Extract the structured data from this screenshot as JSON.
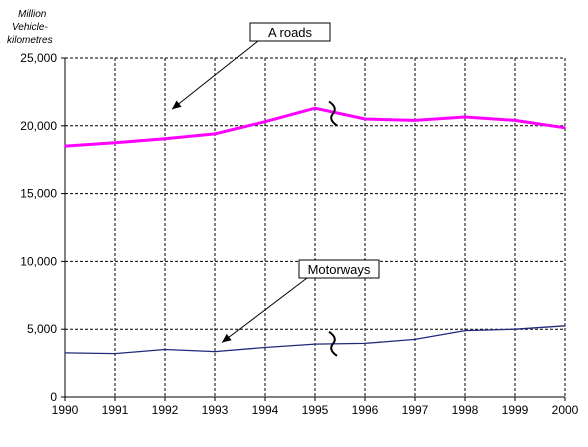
{
  "chart_data": {
    "type": "line",
    "title": "",
    "ylabel_lines": [
      "Million",
      "Vehicle-",
      "kilometres"
    ],
    "xlabel": "",
    "x": [
      "1990",
      "1991",
      "1992",
      "1993",
      "1994",
      "1995",
      "1996",
      "1997",
      "1998",
      "1999",
      "2000"
    ],
    "yticks": [
      "0",
      "5,000",
      "10,000",
      "15,000",
      "20,000",
      "25,000"
    ],
    "ylim": [
      0,
      25000
    ],
    "grid": true,
    "series": [
      {
        "name": "A roads",
        "color": "#ff00ff",
        "values": [
          18500,
          18750,
          19050,
          19400,
          20300,
          21300,
          20500,
          20400,
          20650,
          20400,
          19850
        ]
      },
      {
        "name": "Motorways",
        "color": "#1f2a7a",
        "values": [
          3250,
          3200,
          3500,
          3350,
          3650,
          3900,
          3950,
          4250,
          4900,
          5000,
          5250
        ]
      }
    ],
    "annotations": [
      {
        "label": "A roads",
        "points_to": {
          "x": "1992",
          "y": 21000
        },
        "break_mark_at": "1995"
      },
      {
        "label": "Motorways",
        "points_to": {
          "x": "1993",
          "y": 3800
        },
        "break_mark_at": "1995"
      }
    ]
  }
}
